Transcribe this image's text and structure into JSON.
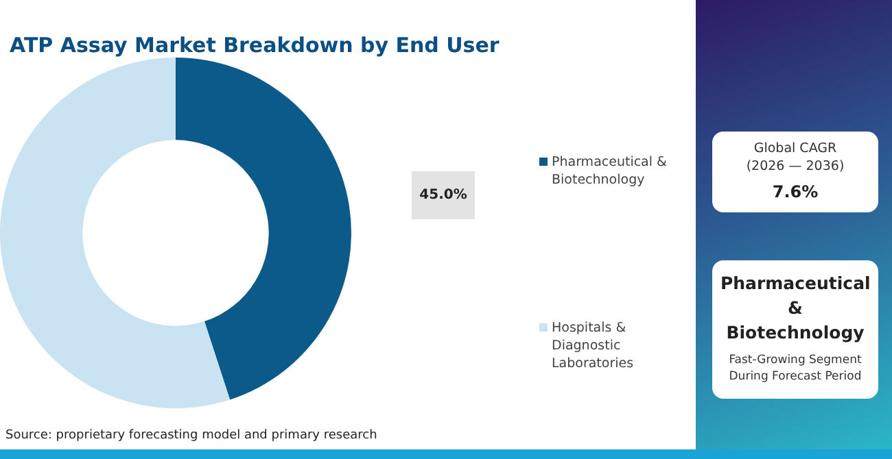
{
  "chart_data": {
    "type": "donut",
    "title": "ATP Assay Market Breakdown by End User",
    "categories": [
      "Pharmaceutical & Biotechnology",
      "Hospitals & Diagnostic Laboratories"
    ],
    "values": [
      45,
      55
    ],
    "colors": [
      "#0b5a8a",
      "#c9e3f2"
    ],
    "value_labels": [
      "45.0%",
      null
    ],
    "legend": "right",
    "annotations": [
      "Source: proprietary forecasting model and primary research",
      "Global CAGR (2026 — 2036)",
      "7.6%",
      "Pharmaceutical & Biotechnology",
      "Fast-Growing Segment During Forecast Period"
    ]
  }
}
